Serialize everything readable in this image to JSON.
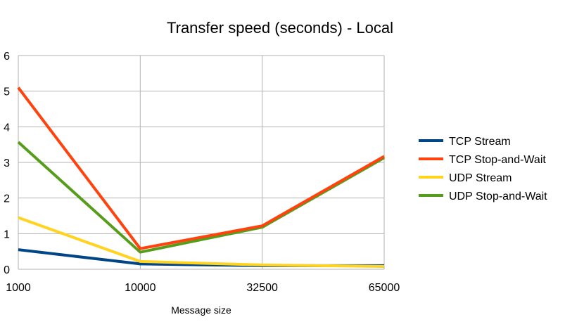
{
  "chart_data": {
    "type": "line",
    "title": "Transfer speed (seconds) - Local",
    "xlabel": "Message size",
    "ylabel": "",
    "categories": [
      "1000",
      "10000",
      "32500",
      "65000"
    ],
    "ylim": [
      0,
      6
    ],
    "yticks": [
      "0",
      "1",
      "2",
      "3",
      "4",
      "5",
      "6"
    ],
    "grid": true,
    "legend_position": "right",
    "series": [
      {
        "name": "TCP Stream",
        "color": "#004586",
        "values": [
          0.55,
          0.15,
          0.1,
          0.1
        ]
      },
      {
        "name": "UDP Stream",
        "color": "#ffd320",
        "values": [
          1.45,
          0.22,
          0.12,
          0.08
        ]
      },
      {
        "name": "UDP Stop-and-Wait",
        "color": "#579d1c",
        "values": [
          3.57,
          0.48,
          1.18,
          3.13
        ]
      },
      {
        "name": "TCP Stop-and-Wait",
        "color": "#ff420e",
        "values": [
          5.1,
          0.58,
          1.22,
          3.17
        ]
      }
    ],
    "legend_order": [
      "TCP Stream",
      "TCP Stop-and-Wait",
      "UDP Stream",
      "UDP Stop-and-Wait"
    ]
  }
}
